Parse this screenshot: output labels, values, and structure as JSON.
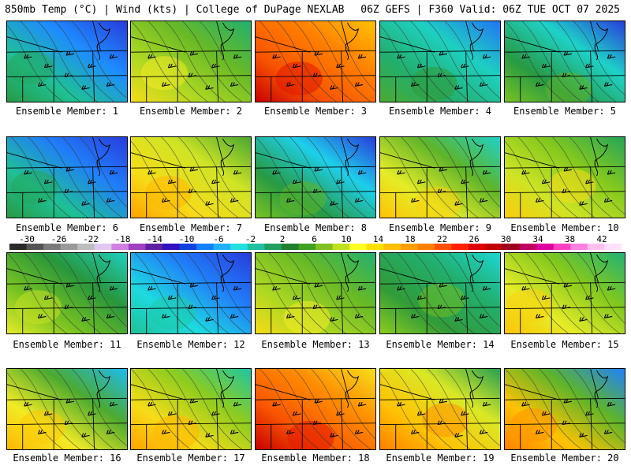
{
  "header": {
    "left": "850mb Temp (°C) | Wind (kts) | College of DuPage NEXLAB",
    "right": "06Z GEFS | F360 Valid: 06Z TUE OCT 07 2025"
  },
  "members": [
    {
      "label": "Ensemble Member: 1",
      "warmth": 0.3,
      "cold_corner": 0.9
    },
    {
      "label": "Ensemble Member: 2",
      "warmth": 0.55,
      "cold_corner": 0.1
    },
    {
      "label": "Ensemble Member: 3",
      "warmth": 0.85,
      "cold_corner": 0.0
    },
    {
      "label": "Ensemble Member: 4",
      "warmth": 0.35,
      "cold_corner": 0.3
    },
    {
      "label": "Ensemble Member: 5",
      "warmth": 0.4,
      "cold_corner": 0.6
    },
    {
      "label": "Ensemble Member: 6",
      "warmth": 0.3,
      "cold_corner": 1.0
    },
    {
      "label": "Ensemble Member: 7",
      "warmth": 0.65,
      "cold_corner": 0.1
    },
    {
      "label": "Ensemble Member: 8",
      "warmth": 0.4,
      "cold_corner": 0.9
    },
    {
      "label": "Ensemble Member: 9",
      "warmth": 0.6,
      "cold_corner": 0.4
    },
    {
      "label": "Ensemble Member: 10",
      "warmth": 0.58,
      "cold_corner": 0.1
    },
    {
      "label": "Ensemble Member: 11",
      "warmth": 0.5,
      "cold_corner": 0.2
    },
    {
      "label": "Ensemble Member: 12",
      "warmth": 0.2,
      "cold_corner": 0.5
    },
    {
      "label": "Ensemble Member: 13",
      "warmth": 0.55,
      "cold_corner": 0.1
    },
    {
      "label": "Ensemble Member: 14",
      "warmth": 0.42,
      "cold_corner": 0.1
    },
    {
      "label": "Ensemble Member: 15",
      "warmth": 0.6,
      "cold_corner": 0.2
    },
    {
      "label": "Ensemble Member: 16",
      "warmth": 0.62,
      "cold_corner": 0.6
    },
    {
      "label": "Ensemble Member: 17",
      "warmth": 0.65,
      "cold_corner": 0.4
    },
    {
      "label": "Ensemble Member: 18",
      "warmth": 0.85,
      "cold_corner": 0.1
    },
    {
      "label": "Ensemble Member: 19",
      "warmth": 0.7,
      "cold_corner": 0.3
    },
    {
      "label": "Ensemble Member: 20",
      "warmth": 0.7,
      "cold_corner": 0.9
    }
  ],
  "colorbar": {
    "ticks": [
      "-30",
      "-26",
      "-22",
      "-18",
      "-14",
      "-10",
      "-6",
      "-2",
      "2",
      "6",
      "10",
      "14",
      "18",
      "22",
      "26",
      "30",
      "34",
      "38",
      "42"
    ],
    "colors": [
      "#2a2a2a",
      "#555555",
      "#7a7a7a",
      "#9a9a9a",
      "#bdbdbd",
      "#e0c8f0",
      "#d080e0",
      "#a040c0",
      "#6020a0",
      "#3010c0",
      "#1040e0",
      "#1080ff",
      "#20b0ff",
      "#20e0e0",
      "#20c0a0",
      "#20a060",
      "#208030",
      "#40a020",
      "#80c020",
      "#c0e020",
      "#ffff20",
      "#ffe000",
      "#ffc000",
      "#ffa000",
      "#ff8000",
      "#ff5000",
      "#ff2000",
      "#e00000",
      "#c00000",
      "#a00020",
      "#c00060",
      "#e000a0",
      "#ff40c0",
      "#ff80e0",
      "#ffc0f0",
      "#ffe0ff"
    ]
  }
}
